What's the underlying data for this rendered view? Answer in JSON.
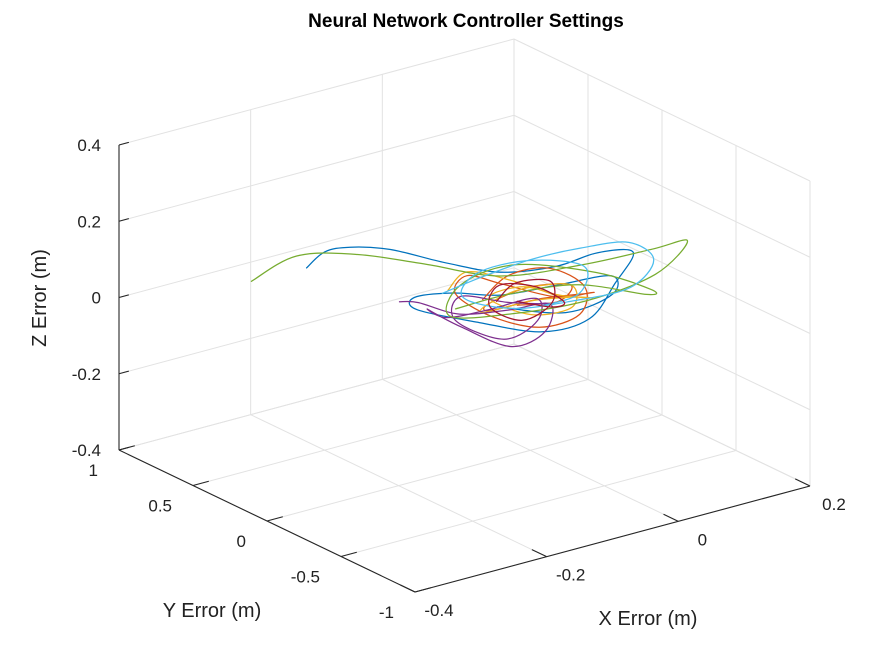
{
  "chart_data": {
    "type": "line",
    "title": "Neural Network Controller Settings",
    "xlabel": "X Error (m)",
    "ylabel": "Y Error (m)",
    "zlabel": "Z Error (m)",
    "xlim": [
      -0.4,
      0.2
    ],
    "ylim": [
      -1,
      1
    ],
    "zlim": [
      -0.4,
      0.4
    ],
    "xticks": [
      "-0.4",
      "-0.2",
      "0",
      "0.2"
    ],
    "yticks": [
      "-1",
      "-0.5",
      "0",
      "0.5",
      "1"
    ],
    "zticks": [
      "-0.4",
      "-0.2",
      "0",
      "0.2",
      "0.4"
    ],
    "grid": true,
    "series": [
      {
        "color": "#0072BD",
        "x": [
          -0.25,
          -0.2,
          -0.15,
          -0.1,
          -0.05,
          0.0,
          0.05,
          0.08,
          0.1,
          0.05,
          0.0,
          -0.05,
          -0.1,
          -0.15,
          -0.12,
          -0.05,
          0.0,
          0.05,
          0.1,
          0.08,
          0.02,
          -0.05
        ],
        "y": [
          0.4,
          0.5,
          0.55,
          0.5,
          0.35,
          0.2,
          0.05,
          -0.1,
          -0.25,
          -0.35,
          -0.4,
          -0.3,
          -0.1,
          0.1,
          0.25,
          0.3,
          0.2,
          0.05,
          -0.1,
          -0.2,
          -0.15,
          0.0
        ],
        "z": [
          0.12,
          0.12,
          0.1,
          0.08,
          0.05,
          0.03,
          0.05,
          0.1,
          0.12,
          0.08,
          0.02,
          -0.01,
          0.0,
          0.02,
          0.01,
          -0.02,
          -0.03,
          0.0,
          0.03,
          0.01,
          -0.02,
          0.0
        ]
      },
      {
        "color": "#D95319",
        "x": [
          -0.05,
          0.0,
          0.04,
          0.06,
          0.03,
          -0.02,
          -0.06,
          -0.08,
          -0.04,
          0.0,
          0.05,
          0.07,
          0.04,
          -0.01,
          -0.05,
          -0.03,
          0.02,
          0.05,
          0.02,
          -0.02
        ],
        "y": [
          0.1,
          0.15,
          0.05,
          -0.1,
          -0.2,
          -0.15,
          0.0,
          0.15,
          0.25,
          0.2,
          0.05,
          -0.1,
          -0.2,
          -0.1,
          0.05,
          0.15,
          0.1,
          -0.05,
          -0.1,
          0.0
        ],
        "z": [
          0.0,
          0.03,
          0.05,
          0.02,
          -0.02,
          -0.04,
          -0.02,
          0.02,
          0.03,
          0.0,
          -0.03,
          0.0,
          0.03,
          0.02,
          -0.02,
          -0.03,
          0.0,
          0.02,
          0.0,
          -0.01
        ]
      },
      {
        "color": "#EDB120",
        "x": [
          -0.08,
          -0.04,
          0.0,
          0.04,
          0.06,
          0.02,
          -0.02,
          -0.06,
          -0.03,
          0.01,
          0.05,
          0.03,
          -0.01,
          -0.04,
          0.0,
          0.03
        ],
        "y": [
          0.2,
          0.25,
          0.15,
          0.0,
          -0.15,
          -0.2,
          -0.1,
          0.05,
          0.15,
          0.1,
          -0.05,
          -0.15,
          -0.05,
          0.1,
          0.05,
          -0.05
        ],
        "z": [
          0.02,
          0.04,
          0.02,
          -0.01,
          0.0,
          0.03,
          0.02,
          -0.02,
          -0.03,
          0.0,
          0.02,
          -0.01,
          -0.03,
          0.0,
          0.02,
          0.0
        ]
      },
      {
        "color": "#7E2F8E",
        "x": [
          -0.12,
          -0.08,
          -0.04,
          0.0,
          0.03,
          0.0,
          -0.04,
          -0.08,
          -0.1,
          -0.06,
          -0.02,
          0.02,
          0.0,
          -0.04,
          -0.08,
          -0.05,
          0.0,
          0.03
        ],
        "y": [
          0.35,
          0.4,
          0.3,
          0.15,
          0.0,
          -0.1,
          -0.05,
          0.1,
          0.25,
          0.3,
          0.2,
          0.05,
          -0.05,
          0.0,
          0.15,
          0.25,
          0.15,
          0.0
        ],
        "z": [
          -0.02,
          -0.05,
          -0.08,
          -0.06,
          -0.03,
          -0.07,
          -0.1,
          -0.06,
          -0.03,
          -0.08,
          -0.06,
          -0.02,
          -0.05,
          -0.09,
          -0.05,
          -0.02,
          -0.04,
          -0.03
        ]
      },
      {
        "color": "#77AC30",
        "x": [
          -0.3,
          -0.22,
          -0.15,
          -0.08,
          0.0,
          0.08,
          0.14,
          0.16,
          0.1,
          0.02,
          -0.05,
          -0.1,
          -0.05,
          0.02,
          0.1,
          0.15,
          0.12,
          0.05,
          -0.02,
          -0.08
        ],
        "y": [
          0.55,
          0.6,
          0.5,
          0.35,
          0.2,
          0.0,
          -0.2,
          -0.35,
          -0.4,
          -0.3,
          -0.1,
          0.1,
          0.25,
          0.2,
          0.0,
          -0.15,
          -0.25,
          -0.1,
          0.05,
          0.15
        ],
        "z": [
          0.08,
          0.1,
          0.09,
          0.06,
          0.02,
          0.05,
          0.1,
          0.14,
          0.09,
          0.04,
          0.0,
          -0.02,
          0.01,
          0.04,
          0.02,
          -0.02,
          0.0,
          0.03,
          0.01,
          -0.02
        ]
      },
      {
        "color": "#4DBEEE",
        "x": [
          -0.1,
          -0.05,
          0.0,
          0.05,
          0.1,
          0.12,
          0.08,
          0.02,
          -0.04,
          -0.08,
          -0.04,
          0.02,
          0.07,
          0.04,
          -0.01
        ],
        "y": [
          0.15,
          0.1,
          0.0,
          -0.12,
          -0.22,
          -0.3,
          -0.32,
          -0.2,
          -0.05,
          0.1,
          0.18,
          0.1,
          -0.05,
          -0.15,
          -0.1
        ],
        "z": [
          0.03,
          0.06,
          0.1,
          0.13,
          0.14,
          0.1,
          0.05,
          0.02,
          0.0,
          0.02,
          0.05,
          0.07,
          0.06,
          0.02,
          0.0
        ]
      },
      {
        "color": "#A2142F",
        "x": [
          -0.04,
          0.0,
          0.03,
          0.01,
          -0.03,
          -0.05,
          -0.02,
          0.02,
          0.04,
          0.01,
          -0.02
        ],
        "y": [
          0.05,
          0.1,
          0.0,
          -0.1,
          -0.08,
          0.05,
          0.12,
          0.05,
          -0.05,
          -0.1,
          0.0
        ],
        "z": [
          0.0,
          0.02,
          0.03,
          0.0,
          -0.03,
          -0.01,
          0.02,
          0.01,
          -0.02,
          -0.01,
          0.0
        ]
      }
    ]
  }
}
